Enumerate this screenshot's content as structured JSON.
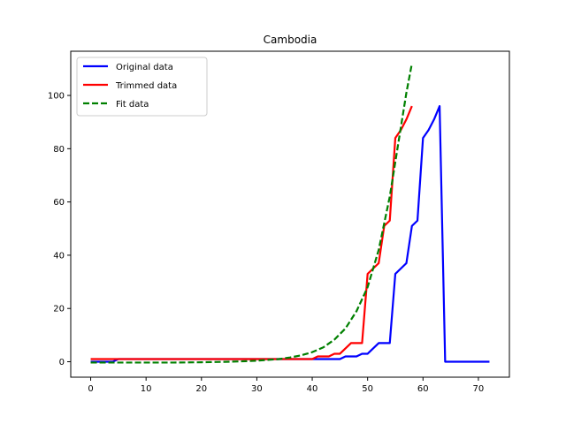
{
  "chart_data": {
    "type": "line",
    "title": "Cambodia",
    "xlabel": "",
    "ylabel": "",
    "xlim": [
      -3.6,
      75.6
    ],
    "ylim": [
      -5.8,
      116.6
    ],
    "xticks": [
      0,
      10,
      20,
      30,
      40,
      50,
      60,
      70
    ],
    "yticks": [
      0,
      20,
      40,
      60,
      80,
      100
    ],
    "grid": false,
    "legend_position": "top-left",
    "series": [
      {
        "name": "Original data",
        "color": "#0000ff",
        "style": "solid",
        "x": [
          0,
          1,
          2,
          3,
          4,
          5,
          6,
          7,
          8,
          9,
          10,
          11,
          12,
          13,
          14,
          15,
          16,
          17,
          18,
          19,
          20,
          21,
          22,
          23,
          24,
          25,
          26,
          27,
          28,
          29,
          30,
          31,
          32,
          33,
          34,
          35,
          36,
          37,
          38,
          39,
          40,
          41,
          42,
          43,
          44,
          45,
          46,
          47,
          48,
          49,
          50,
          51,
          52,
          53,
          54,
          55,
          56,
          57,
          58,
          59,
          60,
          61,
          62,
          63,
          64,
          65,
          66,
          67,
          68,
          69,
          70,
          71,
          72
        ],
        "y": [
          0,
          0,
          0,
          0,
          0,
          1,
          1,
          1,
          1,
          1,
          1,
          1,
          1,
          1,
          1,
          1,
          1,
          1,
          1,
          1,
          1,
          1,
          1,
          1,
          1,
          1,
          1,
          1,
          1,
          1,
          1,
          1,
          1,
          1,
          1,
          1,
          1,
          1,
          1,
          1,
          1,
          1,
          1,
          1,
          1,
          1,
          2,
          2,
          2,
          3,
          3,
          5,
          7,
          7,
          7,
          33,
          35,
          37,
          51,
          53,
          84,
          87,
          91,
          96,
          0,
          0,
          0,
          0,
          0,
          0,
          0,
          0,
          0
        ]
      },
      {
        "name": "Trimmed data",
        "color": "#ff0000",
        "style": "solid",
        "x": [
          0,
          1,
          2,
          3,
          4,
          5,
          6,
          7,
          8,
          9,
          10,
          11,
          12,
          13,
          14,
          15,
          16,
          17,
          18,
          19,
          20,
          21,
          22,
          23,
          24,
          25,
          26,
          27,
          28,
          29,
          30,
          31,
          32,
          33,
          34,
          35,
          36,
          37,
          38,
          39,
          40,
          41,
          42,
          43,
          44,
          45,
          46,
          47,
          48,
          49,
          50,
          51,
          52,
          53,
          54,
          55,
          56,
          57,
          58
        ],
        "y": [
          1,
          1,
          1,
          1,
          1,
          1,
          1,
          1,
          1,
          1,
          1,
          1,
          1,
          1,
          1,
          1,
          1,
          1,
          1,
          1,
          1,
          1,
          1,
          1,
          1,
          1,
          1,
          1,
          1,
          1,
          1,
          1,
          1,
          1,
          1,
          1,
          1,
          1,
          1,
          1,
          1,
          2,
          2,
          2,
          3,
          3,
          5,
          7,
          7,
          7,
          33,
          35,
          37,
          51,
          53,
          84,
          87,
          91,
          96
        ]
      },
      {
        "name": "Fit data",
        "color": "#008000",
        "style": "dashed",
        "x": [
          0,
          5,
          10,
          15,
          20,
          25,
          28,
          30,
          32,
          34,
          36,
          38,
          40,
          42,
          44,
          46,
          48,
          50,
          52,
          54,
          55,
          56,
          57,
          58
        ],
        "y": [
          -0.3,
          -0.3,
          -0.3,
          -0.3,
          -0.2,
          0.0,
          0.2,
          0.4,
          0.7,
          1.0,
          1.6,
          2.4,
          3.6,
          5.4,
          8.3,
          12.5,
          19.0,
          28.0,
          42.0,
          62.0,
          75.0,
          88.0,
          101.0,
          112.0
        ]
      }
    ]
  }
}
